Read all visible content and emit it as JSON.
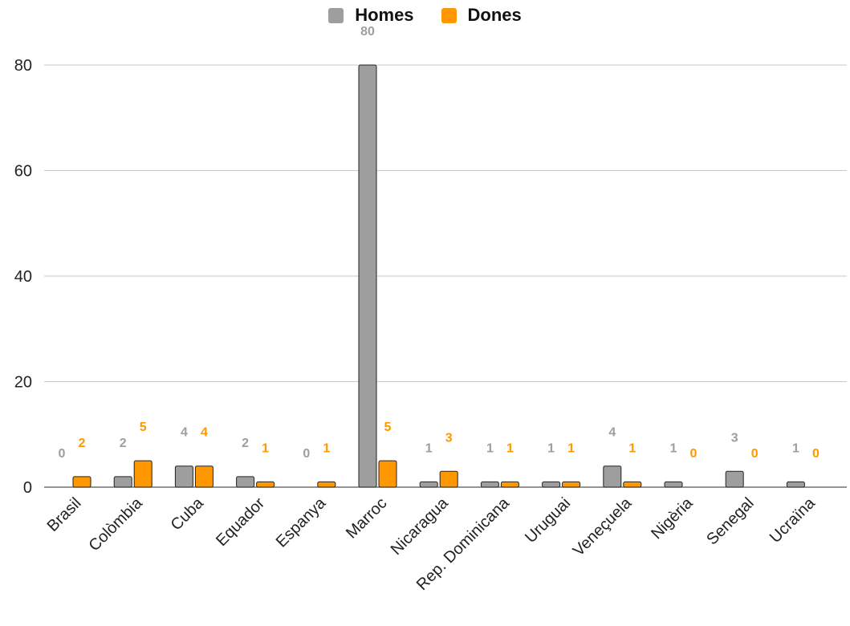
{
  "chart_data": {
    "type": "bar",
    "categories": [
      "Brasil",
      "Colòmbia",
      "Cuba",
      "Equador",
      "Espanya",
      "Marroc",
      "Nicaragua",
      "Rep. Dominicana",
      "Uruguai",
      "Veneçuela",
      "Nigèria",
      "Senegal",
      "Ucraïna"
    ],
    "series": [
      {
        "name": "Homes",
        "color": "#9e9e9e",
        "label_color": "#9e9e9e",
        "values": [
          0,
          2,
          4,
          2,
          0,
          80,
          1,
          1,
          1,
          4,
          1,
          3,
          1
        ]
      },
      {
        "name": "Dones",
        "color": "#ff9800",
        "label_color": "#ff9800",
        "values": [
          2,
          5,
          4,
          1,
          1,
          5,
          3,
          1,
          1,
          1,
          0,
          0,
          0
        ]
      }
    ],
    "ylim": [
      0,
      80
    ],
    "yticks": [
      0,
      20,
      40,
      60,
      80
    ],
    "grid": true,
    "legend_position": "top",
    "title": "",
    "xlabel": "",
    "ylabel": ""
  }
}
